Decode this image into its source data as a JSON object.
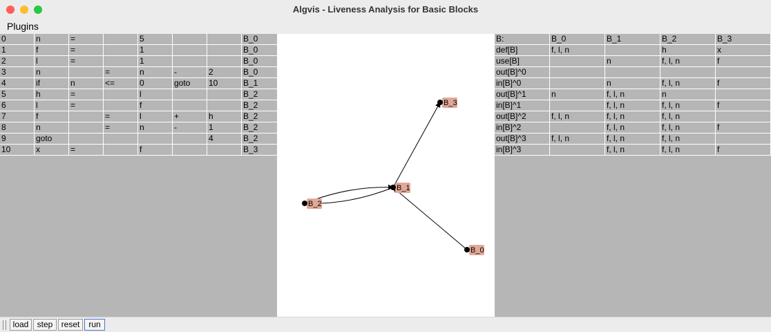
{
  "window": {
    "title": "Algvis - Liveness Analysis for Basic Blocks"
  },
  "menu": {
    "items": [
      "Plugins"
    ]
  },
  "code_table": {
    "rows": [
      [
        "0",
        "n",
        "=",
        "",
        "5",
        "",
        "",
        "B_0"
      ],
      [
        "1",
        "f",
        "=",
        "",
        "1",
        "",
        "",
        "B_0"
      ],
      [
        "2",
        "l",
        "=",
        "",
        "1",
        "",
        "",
        "B_0"
      ],
      [
        "3",
        "n",
        "",
        "=",
        "n",
        "-",
        "2",
        "B_0"
      ],
      [
        "4",
        "if",
        "n",
        "<=",
        "0",
        "goto",
        "10",
        "B_1"
      ],
      [
        "5",
        "h",
        "=",
        "",
        "l",
        "",
        "",
        "B_2"
      ],
      [
        "6",
        "l",
        "=",
        "",
        "f",
        "",
        "",
        "B_2"
      ],
      [
        "7",
        "f",
        "",
        "=",
        "l",
        "+",
        "h",
        "B_2"
      ],
      [
        "8",
        "n",
        "",
        "=",
        "n",
        "-",
        "1",
        "B_2"
      ],
      [
        "9",
        "goto",
        "",
        "",
        "",
        "",
        "4",
        "B_2"
      ],
      [
        "10",
        "x",
        "=",
        "",
        "f",
        "",
        "",
        "B_3"
      ]
    ]
  },
  "graph": {
    "nodes": [
      {
        "id": "B_0",
        "label": "B_0"
      },
      {
        "id": "B_1",
        "label": "B_1"
      },
      {
        "id": "B_2",
        "label": "B_2"
      },
      {
        "id": "B_3",
        "label": "B_3"
      }
    ],
    "edges": [
      {
        "from": "B_0",
        "to": "B_1"
      },
      {
        "from": "B_1",
        "to": "B_2"
      },
      {
        "from": "B_2",
        "to": "B_1"
      },
      {
        "from": "B_1",
        "to": "B_3"
      }
    ],
    "node_fill": "#e0a898",
    "node_dot": "#000000"
  },
  "liveness_table": {
    "header": [
      "B:",
      "B_0",
      "B_1",
      "B_2",
      "B_3"
    ],
    "rows": [
      [
        "def[B]",
        "f, l, n",
        "",
        "h",
        "x"
      ],
      [
        "use[B]",
        "",
        "n",
        "f, l, n",
        "f"
      ],
      [
        "out[B]^0",
        "",
        "",
        "",
        ""
      ],
      [
        "in[B]^0",
        "",
        "n",
        "f, l, n",
        "f"
      ],
      [
        "out[B]^1",
        "n",
        "f, l, n",
        "n",
        ""
      ],
      [
        "in[B]^1",
        "",
        "f, l, n",
        "f, l, n",
        "f"
      ],
      [
        "out[B]^2",
        "f, l, n",
        "f, l, n",
        "f, l, n",
        ""
      ],
      [
        "in[B]^2",
        "",
        "f, l, n",
        "f, l, n",
        "f"
      ],
      [
        "out[B]^3",
        "f, l, n",
        "f, l, n",
        "f, l, n",
        ""
      ],
      [
        "in[B]^3",
        "",
        "f, l, n",
        "f, l, n",
        "f"
      ]
    ]
  },
  "toolbar": {
    "load_label": "load",
    "step_label": "step",
    "reset_label": "reset",
    "run_label": "run"
  },
  "colors": {
    "panel_gray": "#b6b6b6",
    "graph_bg": "#ffffff"
  }
}
